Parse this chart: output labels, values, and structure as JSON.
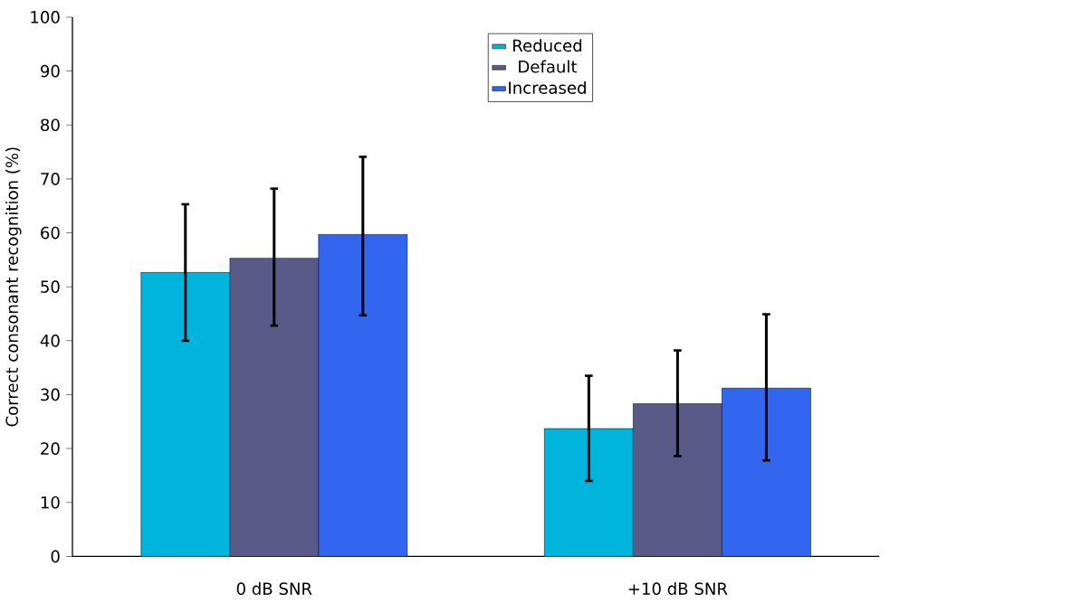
{
  "chart_data": {
    "type": "bar",
    "ylabel": "Correct consonant recognition (%)",
    "categories": [
      "0 dB SNR",
      "+10 dB SNR"
    ],
    "series": [
      {
        "name": "Reduced",
        "color": "#00b4dc",
        "values": [
          52.7,
          23.7
        ],
        "errors": [
          [
            40.0,
            65.3
          ],
          [
            14.0,
            33.5
          ]
        ]
      },
      {
        "name": "Default",
        "color": "#5a5a88",
        "values": [
          55.3,
          28.3
        ],
        "errors": [
          [
            42.8,
            68.2
          ],
          [
            18.6,
            38.2
          ]
        ]
      },
      {
        "name": "Increased",
        "color": "#3366ee",
        "values": [
          59.7,
          31.2
        ],
        "errors": [
          [
            44.7,
            74.1
          ],
          [
            17.8,
            44.9
          ]
        ]
      }
    ],
    "ylim": [
      0,
      100
    ],
    "yticks": [
      0,
      10,
      20,
      30,
      40,
      50,
      60,
      70,
      80,
      90,
      100
    ],
    "grid": false,
    "legend": "top"
  }
}
